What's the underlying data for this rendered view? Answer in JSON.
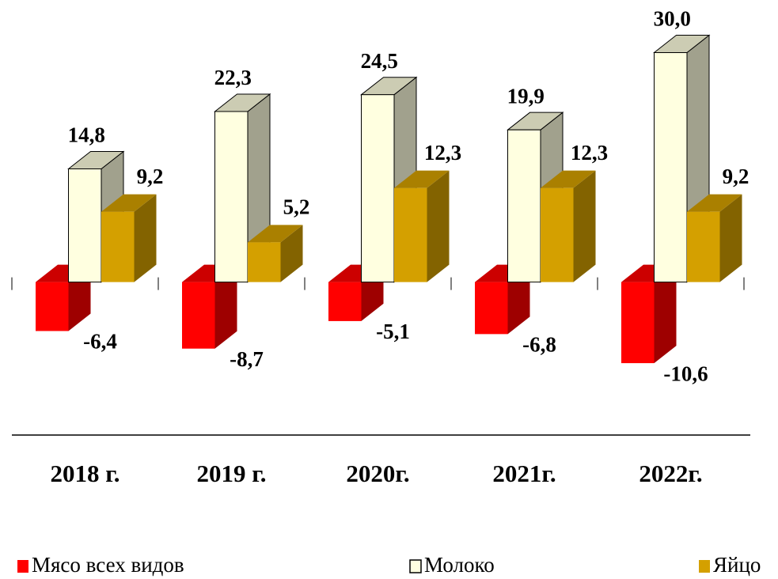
{
  "chart_data": {
    "type": "bar3d",
    "categories": [
      "2018 г.",
      "2019 г.",
      "2020г.",
      "2021г.",
      "2022г."
    ],
    "ylim": [
      -20,
      36
    ],
    "legend": "bottom",
    "series": [
      {
        "name": "Мясо всех видов",
        "color": "#ff0000",
        "values": [
          -6.4,
          -8.7,
          -5.1,
          -6.8,
          -10.6
        ],
        "value_labels": [
          "-6,4",
          "-8,7",
          "-5,1",
          "-6,8",
          "-10,6"
        ]
      },
      {
        "name": "Молоко",
        "color": "#ffffe0",
        "values": [
          14.8,
          22.3,
          24.5,
          19.9,
          30.0
        ],
        "value_labels": [
          "14,8",
          "22,3",
          "24,5",
          "19,9",
          "30,0"
        ]
      },
      {
        "name": "Яйцо",
        "color": "#d4a000",
        "values": [
          9.2,
          5.2,
          12.3,
          12.3,
          9.2
        ],
        "value_labels": [
          "9,2",
          "5,2",
          "12,3",
          "12,3",
          "9,2"
        ]
      }
    ]
  }
}
